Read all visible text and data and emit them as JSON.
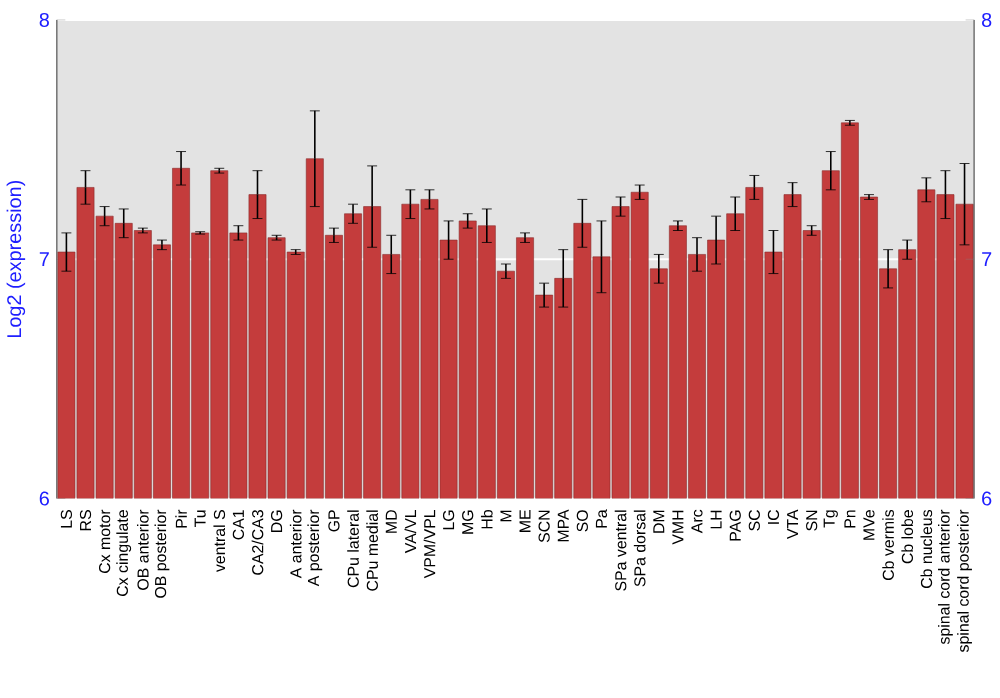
{
  "chart_data": {
    "type": "bar",
    "ylabel": "Log2 (expression)",
    "categories": [
      "LS",
      "RS",
      "Cx motor",
      "Cx cingulate",
      "OB anterior",
      "OB posterior",
      "Pir",
      "Tu",
      "ventral S",
      "CA1",
      "CA2/CA3",
      "DG",
      "A anterior",
      "A posterior",
      "GP",
      "CPu lateral",
      "CPu medial",
      "MD",
      "VA/VL",
      "VPM/VPL",
      "LG",
      "MG",
      "Hb",
      "M",
      "ME",
      "SCN",
      "MPA",
      "SO",
      "Pa",
      "SPa ventral",
      "SPa dorsal",
      "DM",
      "VMH",
      "Arc",
      "LH",
      "PAG",
      "SC",
      "IC",
      "VTA",
      "SN",
      "Tg",
      "Pn",
      "MVe",
      "Cb vermis",
      "Cb lobe",
      "Cb nucleus",
      "spinal cord anterior",
      "spinal cord posterior"
    ],
    "values": [
      7.03,
      7.3,
      7.18,
      7.15,
      7.12,
      7.06,
      7.38,
      7.11,
      7.37,
      7.11,
      7.27,
      7.09,
      7.03,
      7.42,
      7.1,
      7.19,
      7.22,
      7.02,
      7.23,
      7.25,
      7.08,
      7.16,
      7.14,
      6.95,
      7.09,
      6.85,
      6.92,
      7.15,
      7.01,
      7.22,
      7.28,
      6.96,
      7.14,
      7.02,
      7.08,
      7.19,
      7.3,
      7.03,
      7.27,
      7.12,
      7.37,
      7.57,
      7.26,
      6.96,
      7.04,
      7.29,
      7.27,
      7.23
    ],
    "errors": [
      0.08,
      0.07,
      0.04,
      0.06,
      0.01,
      0.02,
      0.07,
      0.005,
      0.01,
      0.03,
      0.1,
      0.01,
      0.01,
      0.2,
      0.03,
      0.04,
      0.17,
      0.08,
      0.06,
      0.04,
      0.08,
      0.03,
      0.07,
      0.03,
      0.02,
      0.05,
      0.12,
      0.1,
      0.15,
      0.04,
      0.03,
      0.06,
      0.02,
      0.07,
      0.1,
      0.07,
      0.05,
      0.09,
      0.05,
      0.02,
      0.08,
      0.01,
      0.01,
      0.08,
      0.04,
      0.05,
      0.1,
      0.17
    ],
    "color": "#c43c3c",
    "ylim": [
      6,
      8
    ],
    "yticks": [
      6,
      7,
      8
    ],
    "y2lim": [
      6,
      8
    ],
    "y2ticks": [
      6,
      7,
      8
    ],
    "grid": "y"
  }
}
